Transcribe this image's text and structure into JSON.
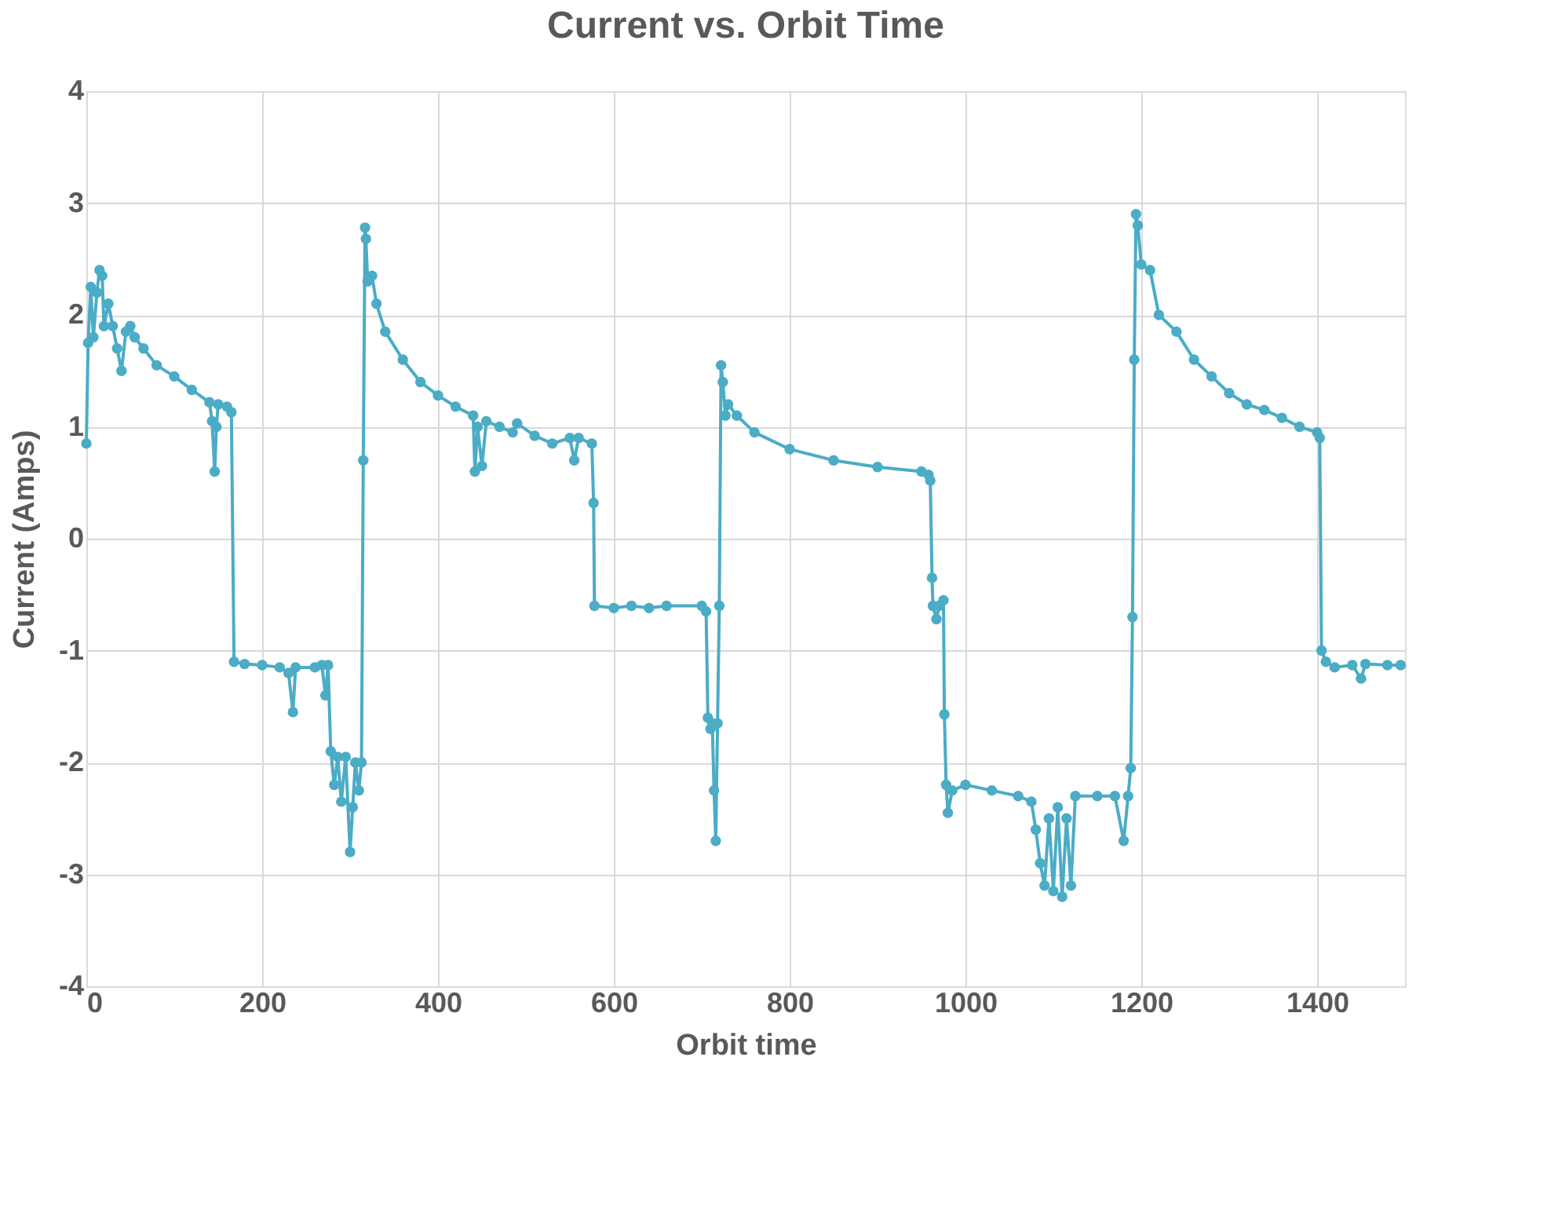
{
  "chart_data": {
    "type": "line",
    "title": "Current vs. Orbit Time",
    "xlabel": "Orbit time",
    "ylabel": "Current (Amps)",
    "xlim": [
      0,
      1500
    ],
    "xticks": [
      0,
      200,
      400,
      600,
      800,
      1000,
      1200,
      1400
    ],
    "ylim": [
      -4,
      4
    ],
    "yticks": [
      -4,
      -3,
      -2,
      -1,
      0,
      1,
      2,
      3,
      4
    ],
    "grid": true,
    "marker": "circle",
    "line_style": "solid",
    "series": [
      {
        "color": "#4bacc6",
        "x": [
          0,
          2,
          5,
          8,
          12,
          15,
          18,
          20,
          25,
          30,
          35,
          40,
          45,
          50,
          55,
          65,
          80,
          100,
          120,
          140,
          143,
          146,
          148,
          150,
          160,
          165,
          168,
          180,
          200,
          220,
          230,
          235,
          238,
          260,
          268,
          272,
          275,
          278,
          282,
          286,
          290,
          295,
          300,
          303,
          306,
          310,
          313,
          315,
          317,
          318,
          320,
          325,
          330,
          340,
          360,
          380,
          400,
          420,
          440,
          442,
          445,
          450,
          455,
          470,
          485,
          490,
          510,
          530,
          550,
          555,
          560,
          575,
          577,
          578,
          600,
          620,
          640,
          660,
          700,
          705,
          707,
          710,
          712,
          714,
          716,
          718,
          720,
          722,
          724,
          727,
          730,
          740,
          760,
          800,
          850,
          900,
          950,
          958,
          960,
          962,
          963,
          967,
          970,
          975,
          976,
          978,
          980,
          985,
          1000,
          1030,
          1060,
          1075,
          1080,
          1085,
          1090,
          1095,
          1100,
          1105,
          1110,
          1115,
          1120,
          1125,
          1150,
          1170,
          1180,
          1185,
          1188,
          1190,
          1192,
          1194,
          1196,
          1200,
          1210,
          1220,
          1240,
          1260,
          1280,
          1300,
          1320,
          1340,
          1360,
          1380,
          1400,
          1403,
          1405,
          1410,
          1420,
          1440,
          1450,
          1455,
          1480,
          1495
        ],
        "values": [
          0.85,
          1.75,
          2.25,
          1.8,
          2.2,
          2.4,
          2.35,
          1.9,
          2.1,
          1.9,
          1.7,
          1.5,
          1.85,
          1.9,
          1.8,
          1.7,
          1.55,
          1.45,
          1.33,
          1.22,
          1.05,
          0.6,
          1.0,
          1.2,
          1.18,
          1.13,
          -1.1,
          -1.12,
          -1.13,
          -1.15,
          -1.2,
          -1.55,
          -1.15,
          -1.15,
          -1.13,
          -1.4,
          -1.13,
          -1.9,
          -2.2,
          -1.95,
          -2.35,
          -1.95,
          -2.8,
          -2.4,
          -2.0,
          -2.25,
          -2.0,
          0.7,
          2.78,
          2.68,
          2.3,
          2.35,
          2.1,
          1.85,
          1.6,
          1.4,
          1.28,
          1.18,
          1.1,
          0.6,
          1.0,
          0.65,
          1.05,
          1.0,
          0.95,
          1.03,
          0.92,
          0.85,
          0.9,
          0.7,
          0.9,
          0.85,
          0.32,
          -0.6,
          -0.62,
          -0.6,
          -0.62,
          -0.6,
          -0.6,
          -0.65,
          -1.6,
          -1.7,
          -1.65,
          -2.25,
          -2.7,
          -1.65,
          -0.6,
          1.55,
          1.4,
          1.1,
          1.2,
          1.1,
          0.95,
          0.8,
          0.7,
          0.64,
          0.6,
          0.57,
          0.52,
          -0.35,
          -0.6,
          -0.72,
          -0.6,
          -0.55,
          -1.57,
          -2.2,
          -2.45,
          -2.25,
          -2.2,
          -2.25,
          -2.3,
          -2.35,
          -2.6,
          -2.9,
          -3.1,
          -2.5,
          -3.15,
          -2.4,
          -3.2,
          -2.5,
          -3.1,
          -2.3,
          -2.3,
          -2.3,
          -2.7,
          -2.3,
          -2.05,
          -0.7,
          1.6,
          2.9,
          2.8,
          2.45,
          2.4,
          2.0,
          1.85,
          1.6,
          1.45,
          1.3,
          1.2,
          1.15,
          1.08,
          1.0,
          0.95,
          0.9,
          -1.0,
          -1.1,
          -1.15,
          -1.13,
          -1.25,
          -1.12,
          -1.13,
          -1.13
        ]
      }
    ]
  }
}
